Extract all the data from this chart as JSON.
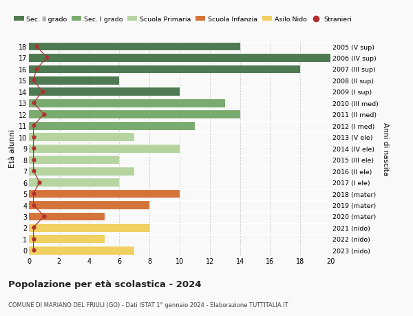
{
  "ages": [
    18,
    17,
    16,
    15,
    14,
    13,
    12,
    11,
    10,
    9,
    8,
    7,
    6,
    5,
    4,
    3,
    2,
    1,
    0
  ],
  "right_labels": [
    "2005 (V sup)",
    "2006 (IV sup)",
    "2007 (III sup)",
    "2008 (II sup)",
    "2009 (I sup)",
    "2010 (III med)",
    "2011 (II med)",
    "2012 (I med)",
    "2013 (V ele)",
    "2014 (IV ele)",
    "2015 (III ele)",
    "2016 (II ele)",
    "2017 (I ele)",
    "2018 (mater)",
    "2019 (mater)",
    "2020 (mater)",
    "2021 (nido)",
    "2022 (nido)",
    "2023 (nido)"
  ],
  "bar_values": [
    14,
    20,
    18,
    6,
    10,
    13,
    14,
    11,
    7,
    10,
    6,
    7,
    6,
    10,
    8,
    5,
    8,
    5,
    7
  ],
  "bar_colors": [
    "#4e7a52",
    "#4e7a52",
    "#4e7a52",
    "#4e7a52",
    "#4e7a52",
    "#7aab6e",
    "#7aab6e",
    "#7aab6e",
    "#b5d4a0",
    "#b5d4a0",
    "#b5d4a0",
    "#b5d4a0",
    "#b5d4a0",
    "#d4733a",
    "#d4733a",
    "#d4733a",
    "#f0d060",
    "#f0d060",
    "#f0d060"
  ],
  "stranieri_x": [
    0.5,
    1.2,
    0.5,
    0.3,
    0.9,
    0.3,
    1.0,
    0.3,
    0.3,
    0.3,
    0.3,
    0.3,
    0.7,
    0.3,
    0.3,
    1.0,
    0.3,
    0.3,
    0.3
  ],
  "legend_labels": [
    "Sec. II grado",
    "Sec. I grado",
    "Scuola Primaria",
    "Scuola Infanzia",
    "Asilo Nido",
    "Stranieri"
  ],
  "legend_colors": [
    "#4e7a52",
    "#7aab6e",
    "#b5d4a0",
    "#d4733a",
    "#f0d060",
    "#b03030"
  ],
  "title": "Popolazione per età scolastica - 2024",
  "subtitle": "COMUNE DI MARIANO DEL FRIULI (GO) - Dati ISTAT 1° gennaio 2024 - Elaborazione TUTTITALIA.IT",
  "ylabel_left": "Età alunni",
  "ylabel_right": "Anni di nascita",
  "bg_color": "#f9f9f9",
  "dot_color": "#b03030",
  "xlim": [
    0,
    20
  ],
  "ylim": [
    -0.5,
    18.5
  ],
  "xticks": [
    0,
    2,
    4,
    6,
    8,
    10,
    12,
    14,
    16,
    18,
    20
  ]
}
